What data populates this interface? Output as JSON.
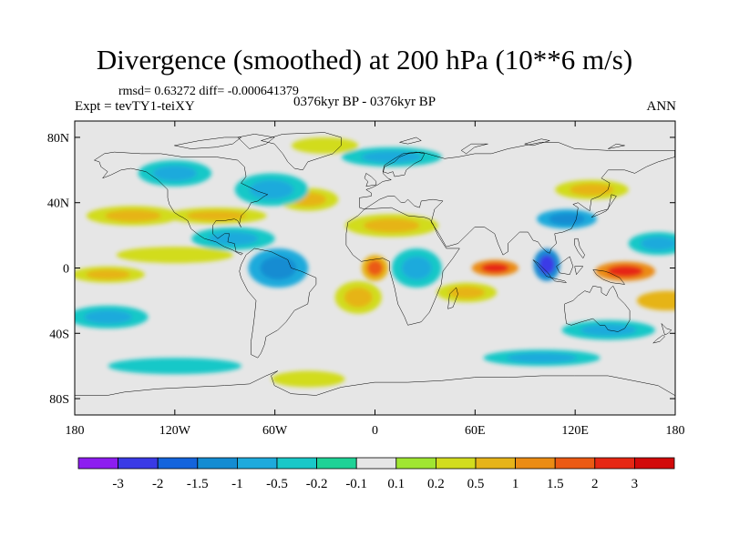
{
  "header": {
    "title": "Divergence (smoothed) at 200 hPa (10**6 m/s)",
    "stats": "rmsd= 0.63272 diff= -0.000641379",
    "experiment": "Expt = tevTY1-teiXY",
    "period": "0376kyr BP - 0376kyr BP",
    "season": "ANN"
  },
  "chart_data": {
    "type": "heatmap",
    "title": "Divergence (smoothed) at 200 hPa (10**6 m/s)",
    "projection": "cylindrical equidistant",
    "x_range": [
      -180,
      180
    ],
    "y_range": [
      -90,
      90
    ],
    "x_ticks": [
      -180,
      -120,
      -60,
      0,
      60,
      120,
      180
    ],
    "x_tick_labels": [
      "180",
      "120W",
      "60W",
      "0",
      "60E",
      "120E",
      "180"
    ],
    "y_ticks": [
      80,
      40,
      0,
      -40,
      -80
    ],
    "y_tick_labels": [
      "80N",
      "40N",
      "0",
      "40S",
      "80S"
    ],
    "colorbar": {
      "levels": [
        "-3",
        "-2",
        "-1.5",
        "-1",
        "-0.5",
        "-0.2",
        "-0.1",
        "0.1",
        "0.2",
        "0.5",
        "1",
        "1.5",
        "2",
        "3"
      ],
      "colors": [
        "#8d1df0",
        "#3a3ae6",
        "#1464dc",
        "#148cd2",
        "#1eaadc",
        "#19c8c8",
        "#1ed296",
        "#e6e6e6",
        "#a0e632",
        "#d2dc1e",
        "#e6b419",
        "#eb8c14",
        "#eb5a14",
        "#e62814",
        "#d20a0a"
      ]
    },
    "features": [
      {
        "level": 0.7,
        "lon": -160,
        "lat": -4,
        "rx": 22,
        "ry": 5
      },
      {
        "level": 0.5,
        "lon": -120,
        "lat": 8,
        "rx": 35,
        "ry": 5
      },
      {
        "level": 0.6,
        "lon": -95,
        "lat": 32,
        "rx": 30,
        "ry": 5
      },
      {
        "level": 0.7,
        "lon": -145,
        "lat": 32,
        "rx": 28,
        "ry": 6
      },
      {
        "level": -0.6,
        "lon": -85,
        "lat": 18,
        "rx": 25,
        "ry": 7
      },
      {
        "level": -1.1,
        "lon": -58,
        "lat": 0,
        "rx": 18,
        "ry": 12
      },
      {
        "level": -0.8,
        "lon": -62,
        "lat": 48,
        "rx": 22,
        "ry": 10
      },
      {
        "level": -0.6,
        "lon": -120,
        "lat": 58,
        "rx": 22,
        "ry": 8
      },
      {
        "level": 0.6,
        "lon": -40,
        "lat": 42,
        "rx": 18,
        "ry": 7
      },
      {
        "level": 1.6,
        "lon": 0,
        "lat": 0,
        "rx": 8,
        "ry": 8
      },
      {
        "level": 0.9,
        "lon": -10,
        "lat": -18,
        "rx": 14,
        "ry": 10
      },
      {
        "level": 0.8,
        "lon": 10,
        "lat": 26,
        "rx": 28,
        "ry": 7
      },
      {
        "level": -0.9,
        "lon": 25,
        "lat": 0,
        "rx": 15,
        "ry": 12
      },
      {
        "level": 2.6,
        "lon": 72,
        "lat": 0,
        "rx": 14,
        "ry": 5
      },
      {
        "level": 0.9,
        "lon": 55,
        "lat": -15,
        "rx": 18,
        "ry": 6
      },
      {
        "level": -2.4,
        "lon": 103,
        "lat": 2,
        "rx": 8,
        "ry": 10
      },
      {
        "level": -1.2,
        "lon": 115,
        "lat": 30,
        "rx": 18,
        "ry": 6
      },
      {
        "level": 0.7,
        "lon": 130,
        "lat": 48,
        "rx": 22,
        "ry": 6
      },
      {
        "level": 2.2,
        "lon": 150,
        "lat": -2,
        "rx": 18,
        "ry": 6
      },
      {
        "level": 1.0,
        "lon": 175,
        "lat": -20,
        "rx": 18,
        "ry": 6
      },
      {
        "level": -0.7,
        "lon": 140,
        "lat": -38,
        "rx": 28,
        "ry": 6
      },
      {
        "level": -0.5,
        "lon": 100,
        "lat": -55,
        "rx": 35,
        "ry": 5
      },
      {
        "level": -0.4,
        "lon": -120,
        "lat": -60,
        "rx": 40,
        "ry": 5
      },
      {
        "level": 0.5,
        "lon": -40,
        "lat": -68,
        "rx": 22,
        "ry": 5
      },
      {
        "level": -0.5,
        "lon": 10,
        "lat": 68,
        "rx": 30,
        "ry": 6
      },
      {
        "level": 0.4,
        "lon": -30,
        "lat": 75,
        "rx": 20,
        "ry": 5
      },
      {
        "level": -0.8,
        "lon": -160,
        "lat": -30,
        "rx": 24,
        "ry": 7
      },
      {
        "level": -0.7,
        "lon": 170,
        "lat": 15,
        "rx": 18,
        "ry": 7
      }
    ]
  }
}
